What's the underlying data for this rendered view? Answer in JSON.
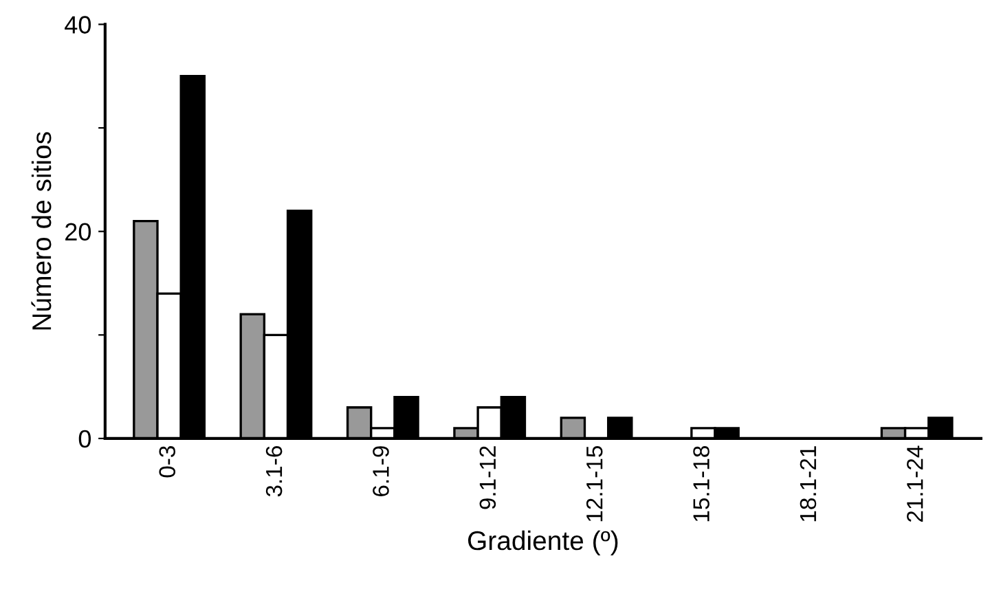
{
  "chart_data": {
    "type": "bar",
    "xlabel": "Gradiente (º)",
    "ylabel": "Número de sitios",
    "categories": [
      "0-3",
      "3.1-6",
      "6.1-9",
      "9.1-12",
      "12.1-15",
      "15.1-18",
      "18.1-21",
      "21.1-24"
    ],
    "series": [
      {
        "color": "#999999",
        "values": [
          21,
          12,
          3,
          1,
          2,
          0,
          0,
          1
        ]
      },
      {
        "color": "#ffffff",
        "values": [
          14,
          10,
          1,
          3,
          0,
          1,
          0,
          1
        ]
      },
      {
        "color": "#000000",
        "values": [
          35,
          22,
          4,
          4,
          2,
          1,
          0,
          2
        ]
      }
    ],
    "ylim": [
      0,
      40
    ],
    "yticks": [
      0,
      {
        "value": 10,
        "label": null
      },
      20,
      {
        "value": 30,
        "label": null
      },
      40
    ],
    "grid": false,
    "legend": false
  }
}
